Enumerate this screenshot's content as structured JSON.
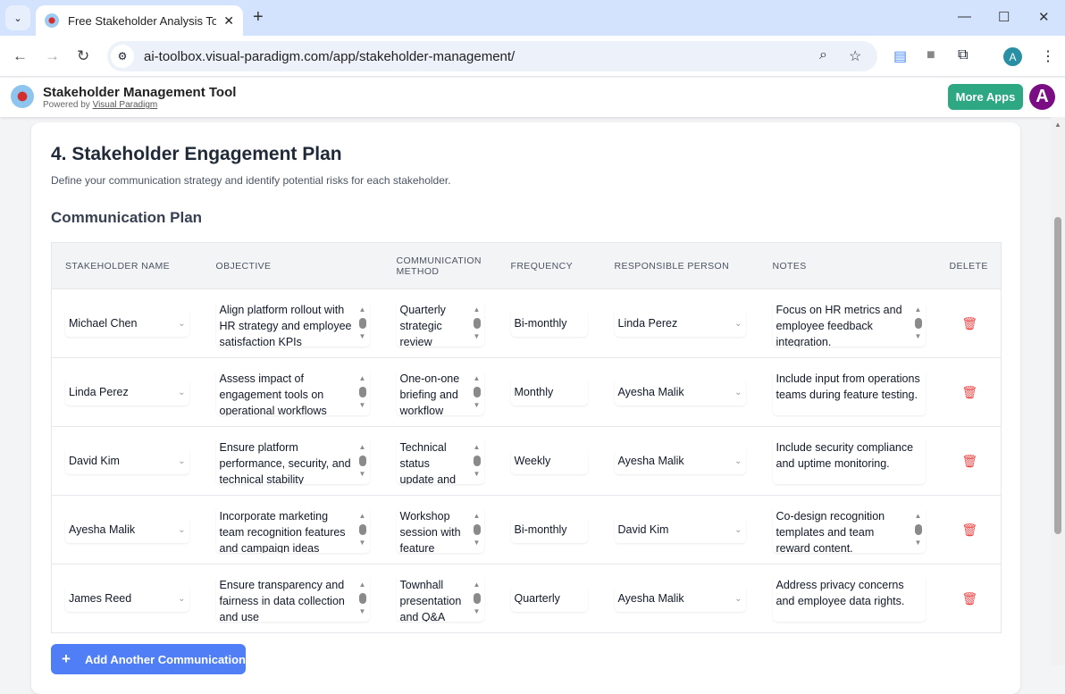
{
  "browser": {
    "tab_title": "Free Stakeholder Analysis Tool |",
    "url": "ai-toolbox.visual-paradigm.com/app/stakeholder-management/",
    "profile_initial": "A"
  },
  "app": {
    "title": "Stakeholder Management Tool",
    "powered_by": "Powered by",
    "powered_link": "Visual Paradigm",
    "more_apps": "More Apps",
    "avatar_initial": "A"
  },
  "section": {
    "title": "4. Stakeholder Engagement Plan",
    "description": "Define your communication strategy and identify potential risks for each stakeholder.",
    "subtitle": "Communication Plan"
  },
  "table": {
    "headers": [
      "STAKEHOLDER NAME",
      "OBJECTIVE",
      "COMMUNICATION METHOD",
      "FREQUENCY",
      "RESPONSIBLE PERSON",
      "NOTES",
      "DELETE"
    ],
    "rows": [
      {
        "stakeholder": "Michael Chen",
        "objective": "Align platform rollout with HR strategy and employee satisfaction KPIs",
        "method": "Quarterly strategic review",
        "frequency": "Bi-monthly",
        "responsible": "Linda Perez",
        "notes": "Focus on HR metrics and employee feedback integration."
      },
      {
        "stakeholder": "Linda Perez",
        "objective": "Assess impact of engagement tools on operational workflows",
        "method": "One-on-one briefing and workflow",
        "frequency": "Monthly",
        "responsible": "Ayesha Malik",
        "notes": "Include input from operations teams during feature testing."
      },
      {
        "stakeholder": "David Kim",
        "objective": "Ensure platform performance, security, and technical stability",
        "method": "Technical status update and",
        "frequency": "Weekly",
        "responsible": "Ayesha Malik",
        "notes": "Include security compliance and uptime monitoring."
      },
      {
        "stakeholder": "Ayesha Malik",
        "objective": "Incorporate marketing team recognition features and campaign ideas",
        "method": "Workshop session with feature",
        "frequency": "Bi-monthly",
        "responsible": "David Kim",
        "notes": "Co-design recognition templates and team reward content."
      },
      {
        "stakeholder": "James Reed",
        "objective": "Ensure transparency and fairness in data collection and use",
        "method": "Townhall presentation and Q&A",
        "frequency": "Quarterly",
        "responsible": "Ayesha Malik",
        "notes": "Address privacy concerns and employee data rights."
      }
    ],
    "notes_scrollable": [
      true,
      false,
      false,
      true,
      false
    ]
  },
  "add_button": "Add Another Communication",
  "colors": {
    "primary": "#4f7ef7",
    "more_apps": "#2ea882",
    "delete": "#ef4444",
    "avatar": "#7b0d84"
  }
}
